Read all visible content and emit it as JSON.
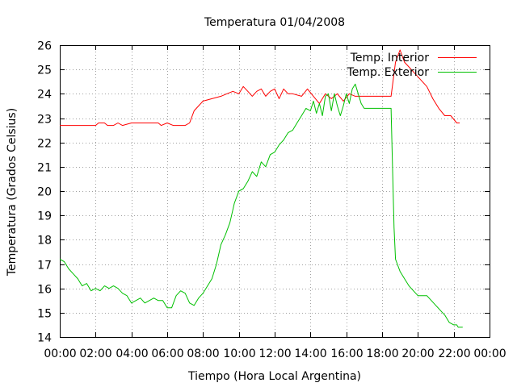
{
  "chart_data": {
    "type": "line",
    "title": "Temperatura 01/04/2008",
    "xlabel": "Tiempo (Hora Local Argentina)",
    "ylabel": "Temperatura (Grados Celsius)",
    "xlim": [
      "00:00",
      "24:00"
    ],
    "ylim": [
      14,
      26
    ],
    "x_ticks": [
      "00:00",
      "02:00",
      "04:00",
      "06:00",
      "08:00",
      "10:00",
      "12:00",
      "14:00",
      "16:00",
      "18:00",
      "20:00",
      "22:00",
      "00:00"
    ],
    "y_ticks": [
      "14",
      "15",
      "16",
      "17",
      "18",
      "19",
      "20",
      "21",
      "22",
      "23",
      "24",
      "25",
      "26"
    ],
    "grid": true,
    "legend_position": "top-right",
    "series": [
      {
        "name": "Temp. Interior",
        "color": "#ff0000",
        "points": [
          [
            "00:00",
            22.7
          ],
          [
            "01:00",
            22.7
          ],
          [
            "02:00",
            22.7
          ],
          [
            "02:10",
            22.8
          ],
          [
            "02:30",
            22.8
          ],
          [
            "02:40",
            22.7
          ],
          [
            "03:00",
            22.7
          ],
          [
            "03:15",
            22.8
          ],
          [
            "03:30",
            22.7
          ],
          [
            "04:00",
            22.8
          ],
          [
            "05:00",
            22.8
          ],
          [
            "05:30",
            22.8
          ],
          [
            "05:40",
            22.7
          ],
          [
            "06:00",
            22.8
          ],
          [
            "06:20",
            22.7
          ],
          [
            "06:40",
            22.7
          ],
          [
            "07:00",
            22.7
          ],
          [
            "07:15",
            22.8
          ],
          [
            "07:30",
            23.3
          ],
          [
            "07:45",
            23.5
          ],
          [
            "08:00",
            23.7
          ],
          [
            "08:30",
            23.8
          ],
          [
            "09:00",
            23.9
          ],
          [
            "09:20",
            24.0
          ],
          [
            "09:40",
            24.1
          ],
          [
            "10:00",
            24.0
          ],
          [
            "10:15",
            24.3
          ],
          [
            "10:30",
            24.1
          ],
          [
            "10:45",
            23.9
          ],
          [
            "11:00",
            24.1
          ],
          [
            "11:15",
            24.2
          ],
          [
            "11:30",
            23.9
          ],
          [
            "11:45",
            24.1
          ],
          [
            "12:00",
            24.2
          ],
          [
            "12:15",
            23.8
          ],
          [
            "12:30",
            24.2
          ],
          [
            "12:45",
            24.0
          ],
          [
            "13:00",
            24.0
          ],
          [
            "13:30",
            23.9
          ],
          [
            "13:50",
            24.2
          ],
          [
            "14:10",
            23.9
          ],
          [
            "14:30",
            23.6
          ],
          [
            "14:50",
            24.0
          ],
          [
            "15:10",
            23.8
          ],
          [
            "15:30",
            24.0
          ],
          [
            "15:50",
            23.7
          ],
          [
            "16:10",
            24.0
          ],
          [
            "16:30",
            23.9
          ],
          [
            "17:00",
            23.9
          ],
          [
            "18:00",
            23.9
          ],
          [
            "18:30",
            23.9
          ],
          [
            "18:45",
            25.3
          ],
          [
            "19:00",
            25.8
          ],
          [
            "19:15",
            25.3
          ],
          [
            "19:30",
            25.1
          ],
          [
            "20:00",
            24.7
          ],
          [
            "20:30",
            24.3
          ],
          [
            "20:50",
            23.8
          ],
          [
            "21:10",
            23.4
          ],
          [
            "21:30",
            23.1
          ],
          [
            "21:50",
            23.1
          ],
          [
            "22:10",
            22.8
          ],
          [
            "22:20",
            22.8
          ]
        ]
      },
      {
        "name": "Temp. Exterior",
        "color": "#00c000",
        "points": [
          [
            "00:00",
            17.2
          ],
          [
            "00:15",
            17.1
          ],
          [
            "00:30",
            16.8
          ],
          [
            "00:45",
            16.6
          ],
          [
            "01:00",
            16.4
          ],
          [
            "01:15",
            16.1
          ],
          [
            "01:30",
            16.2
          ],
          [
            "01:45",
            15.9
          ],
          [
            "02:00",
            16.0
          ],
          [
            "02:15",
            15.9
          ],
          [
            "02:30",
            16.1
          ],
          [
            "02:45",
            16.0
          ],
          [
            "03:00",
            16.1
          ],
          [
            "03:15",
            16.0
          ],
          [
            "03:30",
            15.8
          ],
          [
            "03:45",
            15.7
          ],
          [
            "04:00",
            15.4
          ],
          [
            "04:15",
            15.5
          ],
          [
            "04:30",
            15.6
          ],
          [
            "04:45",
            15.4
          ],
          [
            "05:00",
            15.5
          ],
          [
            "05:15",
            15.6
          ],
          [
            "05:30",
            15.5
          ],
          [
            "05:45",
            15.5
          ],
          [
            "06:00",
            15.2
          ],
          [
            "06:15",
            15.2
          ],
          [
            "06:30",
            15.7
          ],
          [
            "06:45",
            15.9
          ],
          [
            "07:00",
            15.8
          ],
          [
            "07:15",
            15.4
          ],
          [
            "07:30",
            15.3
          ],
          [
            "07:45",
            15.6
          ],
          [
            "08:00",
            15.8
          ],
          [
            "08:30",
            16.4
          ],
          [
            "08:45",
            17.0
          ],
          [
            "09:00",
            17.8
          ],
          [
            "09:15",
            18.2
          ],
          [
            "09:30",
            18.7
          ],
          [
            "09:45",
            19.5
          ],
          [
            "10:00",
            20.0
          ],
          [
            "10:15",
            20.1
          ],
          [
            "10:30",
            20.4
          ],
          [
            "10:45",
            20.8
          ],
          [
            "11:00",
            20.6
          ],
          [
            "11:15",
            21.2
          ],
          [
            "11:30",
            21.0
          ],
          [
            "11:45",
            21.5
          ],
          [
            "12:00",
            21.6
          ],
          [
            "12:15",
            21.9
          ],
          [
            "12:30",
            22.1
          ],
          [
            "12:45",
            22.4
          ],
          [
            "13:00",
            22.5
          ],
          [
            "13:15",
            22.8
          ],
          [
            "13:30",
            23.1
          ],
          [
            "13:45",
            23.4
          ],
          [
            "14:00",
            23.3
          ],
          [
            "14:10",
            23.7
          ],
          [
            "14:20",
            23.2
          ],
          [
            "14:30",
            23.6
          ],
          [
            "14:40",
            23.1
          ],
          [
            "14:50",
            23.9
          ],
          [
            "15:00",
            24.0
          ],
          [
            "15:10",
            23.3
          ],
          [
            "15:20",
            24.0
          ],
          [
            "15:30",
            23.5
          ],
          [
            "15:40",
            23.1
          ],
          [
            "15:50",
            23.5
          ],
          [
            "16:00",
            24.0
          ],
          [
            "16:10",
            23.6
          ],
          [
            "16:20",
            24.2
          ],
          [
            "16:30",
            24.4
          ],
          [
            "16:40",
            24.0
          ],
          [
            "16:50",
            23.6
          ],
          [
            "17:00",
            23.4
          ],
          [
            "18:00",
            23.4
          ],
          [
            "18:30",
            23.4
          ],
          [
            "18:35",
            21.0
          ],
          [
            "18:40",
            18.5
          ],
          [
            "18:45",
            17.2
          ],
          [
            "19:00",
            16.7
          ],
          [
            "19:15",
            16.4
          ],
          [
            "19:30",
            16.1
          ],
          [
            "19:45",
            15.9
          ],
          [
            "20:00",
            15.7
          ],
          [
            "20:30",
            15.7
          ],
          [
            "20:45",
            15.5
          ],
          [
            "21:00",
            15.3
          ],
          [
            "21:15",
            15.1
          ],
          [
            "21:30",
            14.9
          ],
          [
            "21:45",
            14.6
          ],
          [
            "22:00",
            14.5
          ],
          [
            "22:10",
            14.5
          ],
          [
            "22:15",
            14.4
          ],
          [
            "22:30",
            14.4
          ]
        ]
      }
    ]
  }
}
